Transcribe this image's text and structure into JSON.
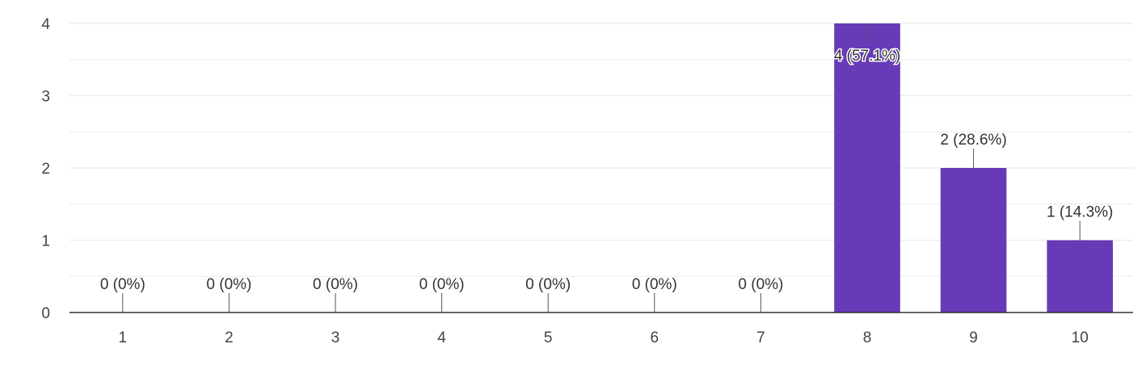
{
  "chart_data": {
    "type": "bar",
    "title": "",
    "xlabel": "",
    "ylabel": "",
    "categories": [
      "1",
      "2",
      "3",
      "4",
      "5",
      "6",
      "7",
      "8",
      "9",
      "10"
    ],
    "values": [
      0,
      0,
      0,
      0,
      0,
      0,
      0,
      4,
      2,
      1
    ],
    "data_labels": [
      "0 (0%)",
      "0 (0%)",
      "0 (0%)",
      "0 (0%)",
      "0 (0%)",
      "0 (0%)",
      "0 (0%)",
      "4 (57.1%)",
      "2 (28.6%)",
      "1 (14.3%)"
    ],
    "ylim": [
      0,
      4
    ],
    "yticks": [
      0,
      1,
      2,
      3,
      4
    ],
    "grid": true,
    "legend": "none",
    "bar_color": "#673ab7",
    "grid_color": "#ebebeb",
    "axis_color": "#333333"
  }
}
